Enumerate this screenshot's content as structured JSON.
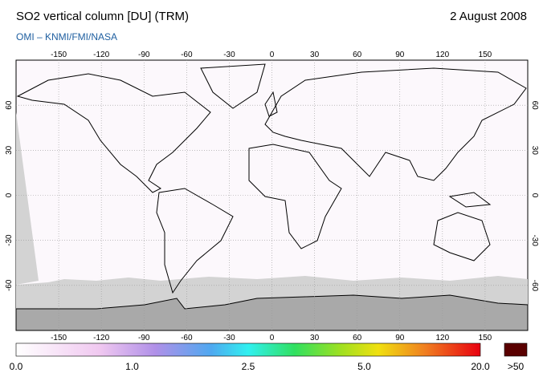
{
  "header": {
    "title": "SO2 vertical column [DU] (TRM)",
    "date": "2 August 2008",
    "credit": "OMI  –  KNMI/FMI/NASA"
  },
  "map": {
    "lon_ticks": [
      -150,
      -120,
      -90,
      -60,
      -30,
      0,
      30,
      60,
      90,
      120,
      150
    ],
    "lat_ticks": [
      -60,
      -30,
      0,
      30,
      60
    ]
  },
  "colorbar": {
    "labels": [
      "0.0",
      "1.0",
      "2.5",
      "5.0",
      "20.0"
    ],
    "overflow_label": ">50"
  }
}
